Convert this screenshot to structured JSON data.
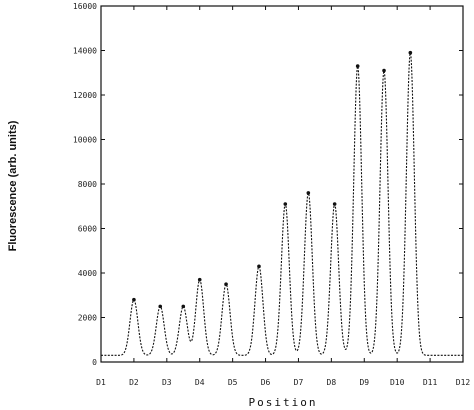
{
  "chart_data": {
    "type": "line",
    "title": "",
    "xlabel": "Position",
    "ylabel": "Fluorescence (arb. units)",
    "ylim": [
      0,
      16000
    ],
    "xlim": [
      1,
      12
    ],
    "grid": false,
    "legend": "none",
    "y_ticks": [
      0,
      2000,
      4000,
      6000,
      8000,
      10000,
      12000,
      14000,
      16000
    ],
    "y_tick_labels": [
      "0",
      "2000",
      "4000",
      "6000",
      "8000",
      "10000",
      "12000",
      "14000",
      "16000"
    ],
    "x_ticks": [
      1,
      2,
      3,
      4,
      5,
      6,
      7,
      8,
      9,
      10,
      11,
      12
    ],
    "x_tick_labels": [
      "D1",
      "D2",
      "D3",
      "D4",
      "D5",
      "D6",
      "D7",
      "D8",
      "D9",
      "D10",
      "D11",
      "D12"
    ],
    "baseline": 300,
    "series": [
      {
        "line_color": "#111111",
        "peaks": [
          {
            "position": 2.0,
            "height": 2800
          },
          {
            "position": 2.8,
            "height": 2500
          },
          {
            "position": 3.5,
            "height": 2500
          },
          {
            "position": 4.0,
            "height": 3700
          },
          {
            "position": 4.8,
            "height": 3500
          },
          {
            "position": 5.8,
            "height": 4300
          },
          {
            "position": 6.6,
            "height": 7100
          },
          {
            "position": 7.3,
            "height": 7600
          },
          {
            "position": 8.1,
            "height": 7100
          },
          {
            "position": 8.8,
            "height": 13300
          },
          {
            "position": 9.6,
            "height": 13100
          },
          {
            "position": 10.4,
            "height": 13900
          }
        ]
      }
    ]
  }
}
